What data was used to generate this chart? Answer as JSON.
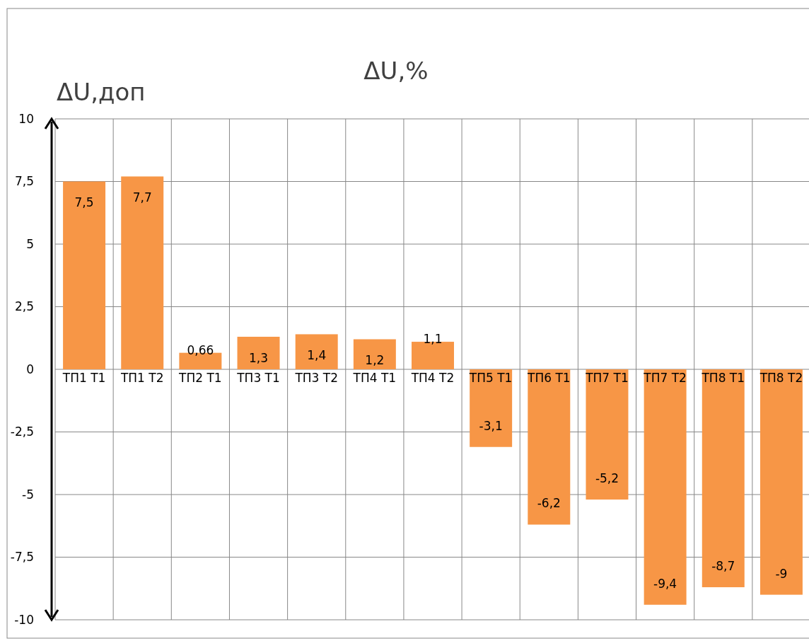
{
  "chart_data": {
    "type": "bar",
    "title": "ΔU,%",
    "ylabel": "ΔU,доп",
    "categories": [
      "ТП1 Т1",
      "ТП1 Т2",
      "ТП2 Т1",
      "ТП3 Т1",
      "ТП3 Т2",
      "ТП4 Т1",
      "ТП4 Т2",
      "ТП5 Т1",
      "ТП6 Т1",
      "ТП7 Т1",
      "ТП7 Т2",
      "ТП8 Т1",
      "ТП8 Т2"
    ],
    "values": [
      7.5,
      7.7,
      0.66,
      1.3,
      1.4,
      1.2,
      1.1,
      -3.1,
      -6.2,
      -5.2,
      -9.4,
      -8.7,
      -9
    ],
    "value_labels": [
      "7,5",
      "7,7",
      "0,66",
      "1,3",
      "1,4",
      "1,2",
      "1,1",
      "-3,1",
      "-6,2",
      "-5,2",
      "-9,4",
      "-8,7",
      "-9"
    ],
    "color": "#f79646",
    "ylim": [
      -10,
      10
    ],
    "yticks": [
      {
        "value": -10,
        "label": "-10"
      },
      {
        "value": -7.5,
        "label": "-7,5"
      },
      {
        "value": -5,
        "label": "-5"
      },
      {
        "value": -2.5,
        "label": "-2,5"
      },
      0,
      {
        "value": 2.5,
        "label": "2,5"
      },
      5,
      {
        "value": 7.5,
        "label": "7,5"
      },
      10
    ],
    "grid": true
  }
}
